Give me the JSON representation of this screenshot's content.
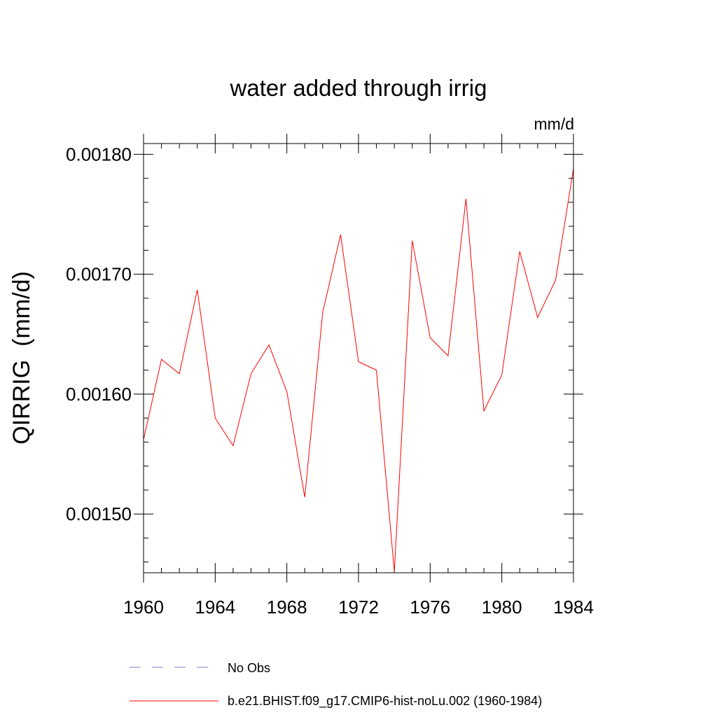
{
  "chart_data": {
    "type": "line",
    "title": "water added through irrig",
    "units_label": "mm/d",
    "ylabel": "QIRRIG  (mm/d)",
    "xlabel": "",
    "xlim": [
      1960,
      1984
    ],
    "ylim": [
      0.001451,
      0.001809
    ],
    "x_ticks": [
      1960,
      1964,
      1968,
      1972,
      1976,
      1980,
      1984
    ],
    "x_tick_labels": [
      "1960",
      "1964",
      "1968",
      "1972",
      "1976",
      "1980",
      "1984"
    ],
    "y_ticks": [
      0.0015,
      0.0016,
      0.0017,
      0.0018
    ],
    "y_tick_labels": [
      "0.00150",
      "0.00160",
      "0.00170",
      "0.00180"
    ],
    "y_minor_step": 2e-05,
    "x_minor_step": 1,
    "grid": false,
    "legend_position": "bottom",
    "series": [
      {
        "name": "b.e21.BHIST.f09_g17.CMIP6-hist-noLu.002 (1960-1984)",
        "color": "#ff0000",
        "dash": "solid",
        "x": [
          1960,
          1961,
          1962,
          1963,
          1964,
          1965,
          1966,
          1967,
          1968,
          1969,
          1970,
          1971,
          1972,
          1973,
          1974,
          1975,
          1976,
          1977,
          1978,
          1979,
          1980,
          1981,
          1982,
          1983,
          1984
        ],
        "values": [
          0.001562,
          0.001629,
          0.001617,
          0.001687,
          0.00158,
          0.001557,
          0.001617,
          0.001641,
          0.001602,
          0.001514,
          0.001668,
          0.001733,
          0.001627,
          0.00162,
          0.001452,
          0.001728,
          0.001647,
          0.001632,
          0.001763,
          0.001586,
          0.001616,
          0.001719,
          0.001664,
          0.001695,
          0.001788
        ]
      }
    ],
    "legend": [
      {
        "label": "No Obs",
        "color": "#7f7fd0",
        "dash": "dashed"
      },
      {
        "label": "b.e21.BHIST.f09_g17.CMIP6-hist-noLu.002 (1960-1984)",
        "color": "#ff0000",
        "dash": "solid"
      }
    ]
  }
}
